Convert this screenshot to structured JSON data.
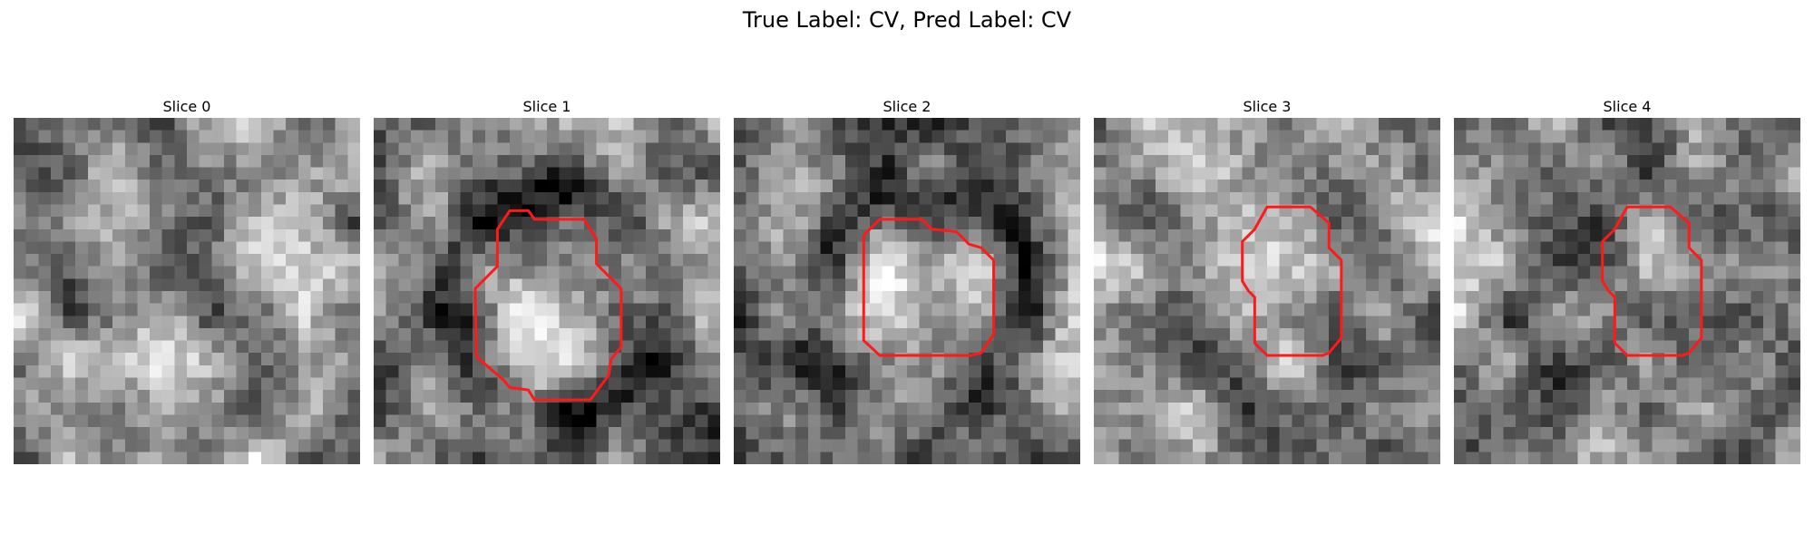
{
  "figure": {
    "title": "True Label: CV, Pred Label: CV",
    "contour_color": "#ff1a1a",
    "slices": [
      {
        "label": "Slice 0",
        "seed": 11,
        "blob": 0.0,
        "base": 0.58,
        "contour": []
      },
      {
        "label": "Slice 1",
        "seed": 23,
        "blob": 0.32,
        "base": 0.52,
        "contour": [
          [
            11,
            7.5
          ],
          [
            12.5,
            7.5
          ],
          [
            13,
            8.2
          ],
          [
            17,
            8.2
          ],
          [
            18,
            9.8
          ],
          [
            18,
            11.8
          ],
          [
            20,
            13.8
          ],
          [
            20,
            18.5
          ],
          [
            19.2,
            19.5
          ],
          [
            19,
            20.8
          ],
          [
            17.5,
            22.8
          ],
          [
            13,
            22.8
          ],
          [
            12.5,
            22
          ],
          [
            11,
            21.8
          ],
          [
            10.5,
            21.2
          ],
          [
            8.3,
            19.3
          ],
          [
            8.2,
            13.8
          ],
          [
            10,
            12
          ],
          [
            10,
            9
          ]
        ]
      },
      {
        "label": "Slice 2",
        "seed": 37,
        "blob": 0.24,
        "base": 0.5,
        "contour": [
          [
            11.8,
            8.2
          ],
          [
            15.2,
            8.2
          ],
          [
            16,
            9
          ],
          [
            18,
            9.2
          ],
          [
            19,
            10.2
          ],
          [
            20,
            10.5
          ],
          [
            21,
            11.5
          ],
          [
            21,
            17.5
          ],
          [
            20,
            19
          ],
          [
            19.2,
            19.2
          ],
          [
            11.8,
            19.2
          ],
          [
            10.5,
            18
          ],
          [
            10.5,
            9.5
          ]
        ]
      },
      {
        "label": "Slice 3",
        "seed": 51,
        "blob": 0.1,
        "base": 0.55,
        "contour": [
          [
            14,
            7.2
          ],
          [
            17.5,
            7.2
          ],
          [
            19,
            8.5
          ],
          [
            19,
            10.5
          ],
          [
            20,
            11.5
          ],
          [
            20,
            17.8
          ],
          [
            19,
            19
          ],
          [
            18.5,
            19.2
          ],
          [
            14,
            19.2
          ],
          [
            13,
            18.2
          ],
          [
            13,
            14.5
          ],
          [
            12.5,
            14
          ],
          [
            12,
            13.2
          ],
          [
            12,
            10
          ],
          [
            13,
            9
          ]
        ]
      },
      {
        "label": "Slice 4",
        "seed": 67,
        "blob": 0.1,
        "base": 0.56,
        "contour": [
          [
            14,
            7.2
          ],
          [
            17.5,
            7.2
          ],
          [
            19,
            8.5
          ],
          [
            19,
            10.5
          ],
          [
            20,
            11.5
          ],
          [
            20,
            17.8
          ],
          [
            19,
            19
          ],
          [
            18.5,
            19.2
          ],
          [
            14,
            19.2
          ],
          [
            13,
            18.2
          ],
          [
            13,
            14.5
          ],
          [
            12.5,
            14
          ],
          [
            12,
            13.2
          ],
          [
            12,
            10
          ],
          [
            13,
            9
          ]
        ]
      }
    ]
  }
}
